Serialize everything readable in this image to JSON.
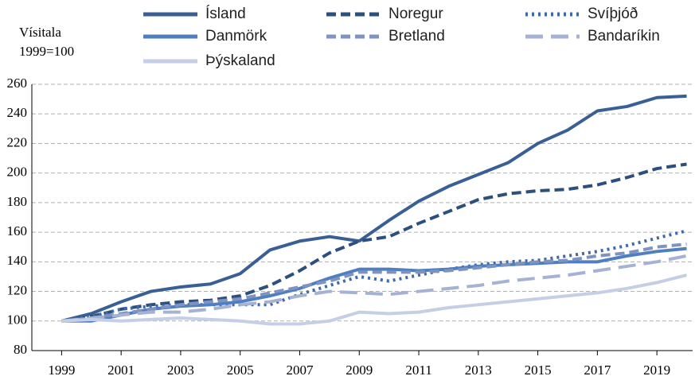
{
  "chart_data": {
    "type": "line",
    "y_label_lines": [
      "Vísitala",
      "1999=100"
    ],
    "x": [
      1999,
      2000,
      2001,
      2002,
      2003,
      2004,
      2005,
      2006,
      2007,
      2008,
      2009,
      2010,
      2011,
      2012,
      2013,
      2014,
      2015,
      2016,
      2017,
      2018,
      2019,
      2020
    ],
    "series": [
      {
        "name": "Ísland",
        "color": "#3a5f94",
        "style": "solid",
        "width": 4,
        "values": [
          100,
          105,
          113,
          120,
          123,
          125,
          132,
          148,
          154,
          157,
          154,
          168,
          181,
          191,
          199,
          207,
          220,
          229,
          242,
          245,
          251,
          252
        ]
      },
      {
        "name": "Noregur",
        "color": "#2c4f7c",
        "style": "dashed",
        "width": 4,
        "values": [
          100,
          103,
          108,
          111,
          113,
          114,
          117,
          124,
          134,
          146,
          154,
          157,
          166,
          174,
          182,
          186,
          188,
          189,
          192,
          197,
          203,
          206
        ]
      },
      {
        "name": "Svíþjóð",
        "color": "#3f6aa6",
        "style": "dotted",
        "width": 4,
        "values": [
          100,
          103,
          108,
          110,
          111,
          111,
          111,
          111,
          118,
          124,
          130,
          127,
          131,
          135,
          138,
          140,
          141,
          144,
          147,
          151,
          156,
          161
        ]
      },
      {
        "name": "Danmörk",
        "color": "#4f7fc0",
        "style": "solid",
        "width": 4,
        "values": [
          100,
          100,
          104,
          108,
          110,
          111,
          113,
          117,
          122,
          129,
          135,
          135,
          134,
          135,
          137,
          138,
          139,
          140,
          140,
          144,
          147,
          149
        ]
      },
      {
        "name": "Bretland",
        "color": "#7f93c0",
        "style": "dashed",
        "width": 4,
        "values": [
          100,
          102,
          105,
          108,
          111,
          113,
          115,
          119,
          123,
          127,
          133,
          133,
          133,
          134,
          136,
          138,
          140,
          141,
          144,
          146,
          150,
          152
        ]
      },
      {
        "name": "Bandaríkin",
        "color": "#a6b2d3",
        "style": "longdash",
        "width": 4,
        "values": [
          100,
          102,
          104,
          106,
          106,
          108,
          111,
          113,
          117,
          120,
          119,
          118,
          120,
          122,
          124,
          127,
          129,
          131,
          134,
          137,
          140,
          144
        ]
      },
      {
        "name": "Þýskaland",
        "color": "#c5cee4",
        "style": "solid",
        "width": 4,
        "values": [
          100,
          101,
          100,
          101,
          102,
          101,
          100,
          98,
          98,
          100,
          106,
          105,
          106,
          109,
          111,
          113,
          115,
          117,
          119,
          122,
          126,
          131
        ]
      }
    ],
    "xlim": [
      1998,
      2020.2
    ],
    "xticks": [
      1999,
      2001,
      2003,
      2005,
      2007,
      2009,
      2011,
      2013,
      2015,
      2017,
      2019
    ],
    "ylim": [
      80,
      260
    ],
    "yticks": [
      80,
      100,
      120,
      140,
      160,
      180,
      200,
      220,
      240,
      260
    ],
    "grid": true
  }
}
